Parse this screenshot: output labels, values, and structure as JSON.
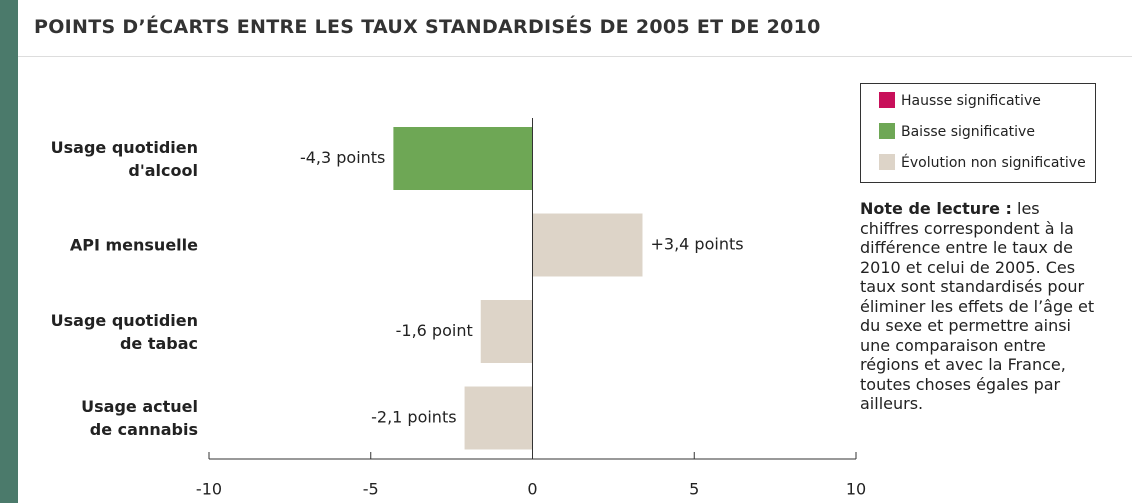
{
  "chart_data": {
    "type": "hbar",
    "title": "POINTS D’ÉCARTS ENTRE LES TAUX STANDARDISÉS DE 2005 ET DE 2010",
    "categories": [
      "Usage quotidien\nd'alcool",
      "API mensuelle",
      "Usage quotidien\nde tabac",
      "Usage actuel\nde cannabis"
    ],
    "values": [
      -4.3,
      3.4,
      -1.6,
      -2.1
    ],
    "value_labels": [
      "-4,3 points",
      "+3,4 points",
      "-1,6 point",
      "-2,1 points"
    ],
    "colors": [
      "#6ea755",
      "#ddd4c8",
      "#ddd4c8",
      "#ddd4c8"
    ],
    "xlim": [
      -10,
      10
    ],
    "xticks": [
      -10,
      -5,
      0,
      5,
      10
    ],
    "legend": [
      {
        "name": "Hausse significative",
        "color": "#c8105a"
      },
      {
        "name": "Baisse significative",
        "color": "#6ea755"
      },
      {
        "name": "Évolution non significative",
        "color": "#ddd4c8"
      }
    ],
    "note": {
      "label": "Note de lecture :",
      "text": "les chiffres correspondent à la différence entre le taux de 2010 et celui de 2005. Ces taux sont standardisés pour éliminer les effets de l’âge et du sexe et permettre ainsi une comparaison entre régions et avec la France, toutes choses égales par ailleurs."
    }
  }
}
